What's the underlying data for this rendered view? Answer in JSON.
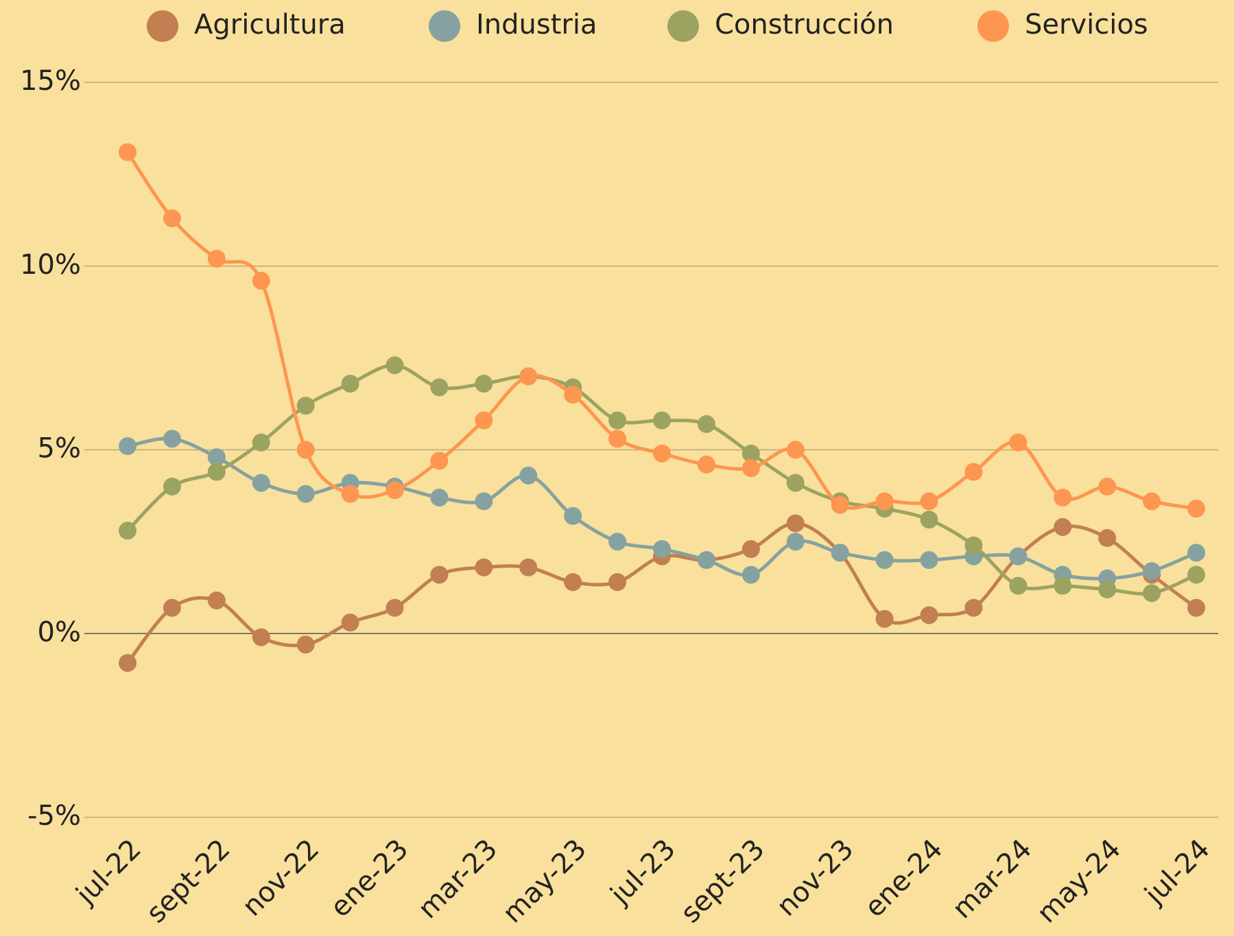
{
  "chart_data": {
    "type": "line",
    "categories": [
      "jul-22",
      null,
      "sept-22",
      null,
      "nov-22",
      null,
      "ene-23",
      null,
      "mar-23",
      null,
      "may-23",
      null,
      "jul-23",
      null,
      "sept-23",
      null,
      "nov-23",
      null,
      "ene-24",
      null,
      "mar-24",
      null,
      "may-24",
      null,
      "jul-24"
    ],
    "series": [
      {
        "name": "Agricultura",
        "color": "#c17f52",
        "values": [
          -0.8,
          0.7,
          0.9,
          -0.1,
          -0.3,
          0.3,
          0.7,
          1.6,
          1.8,
          1.8,
          1.4,
          1.4,
          2.1,
          2.0,
          2.3,
          3.0,
          2.2,
          0.4,
          0.5,
          0.7,
          2.1,
          2.9,
          2.6,
          1.6,
          0.7
        ]
      },
      {
        "name": "Industria",
        "color": "#86a2a0",
        "values": [
          5.1,
          5.3,
          4.8,
          4.1,
          3.8,
          4.1,
          4.0,
          3.7,
          3.6,
          4.3,
          3.2,
          2.5,
          2.3,
          2.0,
          1.6,
          2.5,
          2.2,
          2.0,
          2.0,
          2.1,
          2.1,
          1.6,
          1.5,
          1.7,
          2.2
        ]
      },
      {
        "name": "Construcción",
        "color": "#9ca361",
        "values": [
          2.8,
          4.0,
          4.4,
          5.2,
          6.2,
          6.8,
          7.3,
          6.7,
          6.8,
          7.0,
          6.7,
          5.8,
          5.8,
          5.7,
          4.9,
          4.1,
          3.6,
          3.4,
          3.1,
          2.4,
          1.3,
          1.3,
          1.2,
          1.1,
          1.6
        ]
      },
      {
        "name": "Servicios",
        "color": "#fd9650",
        "values": [
          13.1,
          11.3,
          10.2,
          9.6,
          5.0,
          3.8,
          3.9,
          4.7,
          5.8,
          7.0,
          6.5,
          5.3,
          4.9,
          4.6,
          4.5,
          5.0,
          3.5,
          3.6,
          3.6,
          4.4,
          5.2,
          3.7,
          4.0,
          3.6,
          3.4
        ]
      }
    ],
    "ylim": [
      -5,
      15
    ],
    "yticks": [
      {
        "value": -5,
        "label": "-5%"
      },
      {
        "value": 0,
        "label": "0%"
      },
      {
        "value": 5,
        "label": "5%"
      },
      {
        "value": 10,
        "label": "10%"
      },
      {
        "value": 15,
        "label": "15%"
      }
    ],
    "grid": true
  }
}
